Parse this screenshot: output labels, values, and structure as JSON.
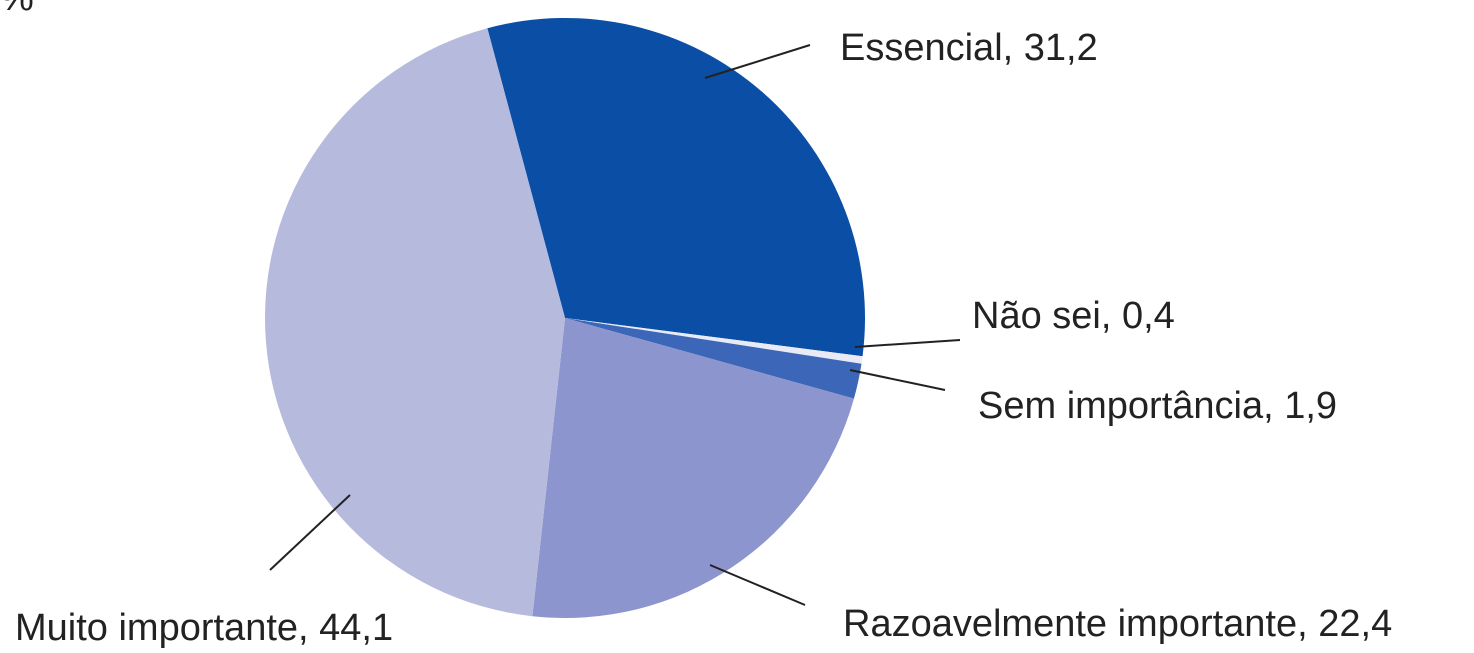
{
  "chart_data": {
    "type": "pie",
    "subtitle": "%",
    "values": [
      31.2,
      0.4,
      1.9,
      22.4,
      44.1
    ],
    "value_labels": [
      "Essencial, 31,2",
      "Não sei, 0,4",
      "Sem importância, 1,9",
      "Razoavelmente importante, 22,4",
      "Muito importante, 44,1"
    ],
    "colors": [
      "#0a4fa5",
      "#e8eaf5",
      "#3c66b8",
      "#8c95cd",
      "#b6badd"
    ]
  }
}
